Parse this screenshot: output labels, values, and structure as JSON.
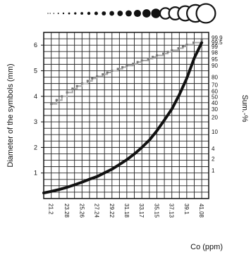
{
  "chart_data": {
    "type": "line",
    "xlabel": "Co (ppm)",
    "ylabel": "Diameter of the symbols (mm)",
    "y2label": "Sum.-%",
    "ylim": [
      0,
      6.5
    ],
    "yticks": [
      "1",
      "2",
      "3",
      "4",
      "5",
      "6"
    ],
    "y2ticks": [
      "99.9",
      "99.5",
      "99",
      "98",
      "95",
      "90",
      "80",
      "70",
      "60",
      "50",
      "40",
      "30",
      "20",
      "10",
      "4",
      "2",
      "1"
    ],
    "xticks": [
      "21.2",
      "23.28",
      "25.26",
      "27.24",
      "29.22",
      "31.18",
      "33.17",
      "35.15",
      "37.13",
      "39.1",
      "41.08"
    ],
    "xlim": [
      20.2,
      42
    ],
    "grid": true,
    "series": [
      {
        "role": "diameter curve",
        "color": "#111111",
        "x": [
          20.2,
          21.2,
          22.3,
          23.28,
          24.3,
          25.26,
          26.2,
          27.24,
          28.2,
          29.22,
          30.2,
          31.18,
          32.2,
          33.17,
          34.2,
          35.15,
          36.1,
          37.13,
          38.1,
          39.1,
          40.1,
          41.08
        ],
        "y": [
          0.22,
          0.28,
          0.36,
          0.44,
          0.54,
          0.64,
          0.75,
          0.86,
          1.0,
          1.15,
          1.33,
          1.52,
          1.75,
          2.0,
          2.3,
          2.65,
          3.05,
          3.5,
          4.05,
          4.7,
          5.5,
          6.1
        ]
      },
      {
        "role": "cumulative frequency",
        "color": "#aaaaaa",
        "x": [
          21.2,
          21.9,
          22.6,
          23.28,
          24.0,
          24.6,
          25.26,
          26.0,
          26.6,
          27.24,
          28.0,
          28.6,
          29.22,
          30.0,
          30.6,
          31.18,
          32.0,
          32.6,
          33.17,
          34.0,
          34.6,
          35.15,
          36.0,
          36.6,
          37.13,
          38.0,
          38.6,
          39.1,
          40.0,
          41.08
        ],
        "y": [
          3.7,
          3.85,
          4.0,
          4.15,
          4.3,
          4.4,
          4.5,
          4.6,
          4.7,
          4.78,
          4.86,
          4.93,
          5.0,
          5.07,
          5.14,
          5.2,
          5.27,
          5.34,
          5.4,
          5.47,
          5.54,
          5.6,
          5.67,
          5.74,
          5.8,
          5.88,
          5.95,
          6.02,
          6.1,
          6.2
        ]
      }
    ],
    "symbol_scale": {
      "description_shown": "graduated symbols",
      "diameters_mm": [
        0.22,
        0.28,
        0.36,
        0.44,
        0.54,
        0.64,
        0.75,
        0.86,
        1.0,
        1.15,
        1.33,
        1.52,
        1.75,
        2.0,
        2.3,
        2.65,
        3.05,
        3.5,
        4.05,
        4.7,
        5.5,
        6.1
      ]
    }
  }
}
